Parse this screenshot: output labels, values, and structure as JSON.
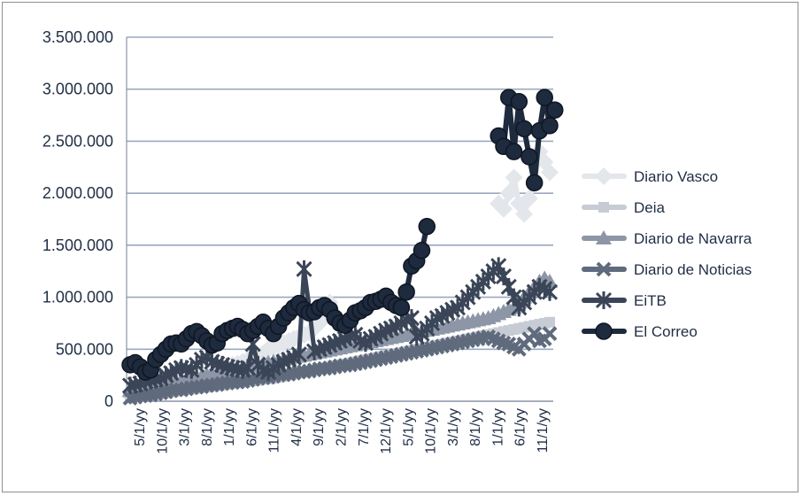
{
  "chart_data": {
    "type": "line",
    "title": "",
    "xlabel": "",
    "ylabel": "",
    "ylim": [
      0,
      3500000
    ],
    "grid": true,
    "legend_position": "right",
    "y_ticks": [
      "0",
      "500.000",
      "1.000.000",
      "1.500.000",
      "2.000.000",
      "2.500.000",
      "3.000.000",
      "3.500.000"
    ],
    "x_ticks": [
      "5/1/yy",
      "10/1/yy",
      "3/1/yy",
      "8/1/yy",
      "1/1/yy",
      "6/1/yy",
      "11/1/yy",
      "4/1/yy",
      "9/1/yy",
      "2/1/yy",
      "7/1/yy",
      "12/1/yy",
      "5/1/yy",
      "10/1/yy",
      "3/1/yy",
      "8/1/yy",
      "1/1/yy",
      "6/1/yy",
      "11/1/yy"
    ],
    "series": [
      {
        "name": "Diario Vasco",
        "color": "#e3e6ea",
        "marker": "diamond",
        "values": [
          50000,
          60000,
          70000,
          85000,
          100000,
          110000,
          120000,
          140000,
          150000,
          160000,
          180000,
          200000,
          210000,
          230000,
          250000,
          270000,
          280000,
          300000,
          320000,
          330000,
          350000,
          360000,
          380000,
          400000,
          420000,
          440000,
          460000,
          500000,
          520000,
          540000,
          560000,
          580000,
          600000,
          620000,
          640000,
          660000,
          700000,
          750000,
          850000,
          950000,
          null,
          null,
          null,
          null,
          null,
          null,
          null,
          null,
          null,
          null,
          null,
          null,
          null,
          null,
          null,
          null,
          null,
          null,
          null,
          null,
          null,
          null,
          null,
          null,
          null,
          null,
          null,
          null,
          null,
          null,
          null,
          null,
          1900000,
          1850000,
          2000000,
          2150000,
          1900000,
          1800000,
          1950000,
          2100000,
          2400000,
          2300000,
          2200000
        ]
      },
      {
        "name": "Deia",
        "color": "#c7ccd4",
        "marker": "square",
        "values": [
          30000,
          40000,
          50000,
          55000,
          60000,
          65000,
          70000,
          80000,
          90000,
          95000,
          100000,
          110000,
          115000,
          120000,
          130000,
          135000,
          140000,
          150000,
          155000,
          160000,
          170000,
          175000,
          180000,
          190000,
          195000,
          200000,
          210000,
          215000,
          220000,
          230000,
          240000,
          250000,
          260000,
          270000,
          280000,
          290000,
          300000,
          310000,
          320000,
          330000,
          340000,
          350000,
          360000,
          370000,
          380000,
          390000,
          400000,
          410000,
          420000,
          430000,
          440000,
          450000,
          460000,
          470000,
          480000,
          490000,
          500000,
          510000,
          520000,
          530000,
          540000,
          550000,
          560000,
          570000,
          580000,
          590000,
          600000,
          610000,
          620000,
          630000,
          640000,
          650000,
          660000,
          670000,
          680000,
          690000,
          700000,
          710000,
          720000,
          730000,
          740000,
          750000,
          760000
        ]
      },
      {
        "name": "Diario de Navarra",
        "color": "#8d96a6",
        "marker": "triangle",
        "values": [
          100000,
          110000,
          120000,
          130000,
          140000,
          150000,
          160000,
          170000,
          180000,
          190000,
          200000,
          210000,
          220000,
          230000,
          240000,
          250000,
          260000,
          270000,
          280000,
          290000,
          300000,
          310000,
          320000,
          330000,
          340000,
          350000,
          360000,
          370000,
          380000,
          390000,
          400000,
          410000,
          420000,
          430000,
          440000,
          450000,
          460000,
          470000,
          480000,
          490000,
          500000,
          510000,
          520000,
          530000,
          540000,
          550000,
          560000,
          570000,
          580000,
          590000,
          600000,
          610000,
          620000,
          630000,
          640000,
          650000,
          660000,
          670000,
          680000,
          690000,
          700000,
          710000,
          720000,
          730000,
          740000,
          750000,
          760000,
          770000,
          780000,
          790000,
          800000,
          820000,
          840000,
          860000,
          880000,
          900000,
          950000,
          1000000,
          1050000,
          1100000,
          1150000,
          1180000,
          1150000
        ]
      },
      {
        "name": "Diario de Noticias",
        "color": "#5f6b7d",
        "marker": "x",
        "values": [
          30000,
          40000,
          50000,
          55000,
          60000,
          70000,
          80000,
          90000,
          100000,
          110000,
          110000,
          120000,
          130000,
          135000,
          140000,
          150000,
          155000,
          160000,
          170000,
          175000,
          180000,
          185000,
          190000,
          200000,
          210000,
          220000,
          225000,
          230000,
          240000,
          250000,
          255000,
          260000,
          270000,
          280000,
          285000,
          290000,
          300000,
          310000,
          315000,
          320000,
          330000,
          340000,
          345000,
          350000,
          360000,
          370000,
          380000,
          390000,
          400000,
          410000,
          420000,
          430000,
          440000,
          450000,
          460000,
          470000,
          480000,
          490000,
          500000,
          510000,
          520000,
          530000,
          540000,
          550000,
          560000,
          570000,
          580000,
          590000,
          600000,
          610000,
          620000,
          600000,
          580000,
          560000,
          550000,
          520000,
          500000,
          550000,
          600000,
          650000,
          580000,
          600000,
          650000
        ]
      },
      {
        "name": "EiTB",
        "color": "#3a4557",
        "marker": "star",
        "values": [
          150000,
          160000,
          170000,
          190000,
          200000,
          210000,
          220000,
          250000,
          270000,
          300000,
          320000,
          310000,
          300000,
          350000,
          400000,
          420000,
          380000,
          360000,
          350000,
          330000,
          320000,
          310000,
          300000,
          320000,
          550000,
          350000,
          300000,
          280000,
          320000,
          350000,
          380000,
          400000,
          420000,
          450000,
          1270000,
          900000,
          480000,
          500000,
          520000,
          540000,
          560000,
          580000,
          600000,
          620000,
          640000,
          580000,
          560000,
          600000,
          620000,
          650000,
          680000,
          700000,
          720000,
          750000,
          780000,
          800000,
          620000,
          650000,
          700000,
          750000,
          800000,
          820000,
          850000,
          880000,
          900000,
          950000,
          1000000,
          1050000,
          1100000,
          1150000,
          1200000,
          1250000,
          1300000,
          1200000,
          1100000,
          1000000,
          900000,
          950000,
          1000000,
          1050000,
          1100000,
          1080000,
          1050000
        ]
      },
      {
        "name": "El Correo",
        "color": "#1e2a3d",
        "marker": "circle",
        "values": [
          350000,
          370000,
          330000,
          280000,
          300000,
          400000,
          450000,
          500000,
          550000,
          560000,
          550000,
          600000,
          650000,
          670000,
          630000,
          580000,
          540000,
          560000,
          650000,
          680000,
          700000,
          720000,
          690000,
          650000,
          680000,
          720000,
          760000,
          700000,
          650000,
          720000,
          800000,
          850000,
          900000,
          940000,
          880000,
          850000,
          860000,
          900000,
          920000,
          880000,
          800000,
          750000,
          730000,
          780000,
          850000,
          870000,
          900000,
          950000,
          960000,
          980000,
          1010000,
          950000,
          920000,
          900000,
          1050000,
          1300000,
          1350000,
          1450000,
          1680000,
          null,
          null,
          null,
          null,
          null,
          null,
          null,
          null,
          null,
          null,
          null,
          null,
          null,
          2550000,
          2450000,
          2920000,
          2400000,
          2880000,
          2620000,
          2350000,
          2100000,
          2600000,
          2920000,
          2650000,
          2800000
        ]
      }
    ]
  }
}
